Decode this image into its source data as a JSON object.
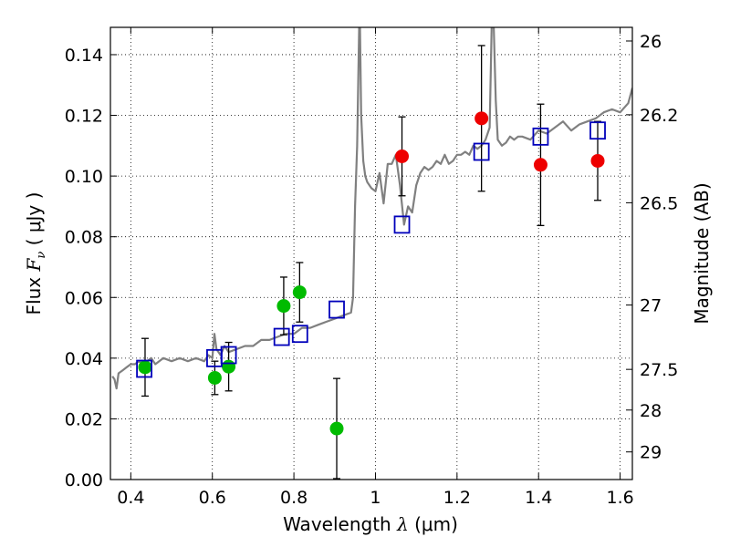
{
  "chart_data": {
    "type": "scatter",
    "xlabel": "Wavelength  λ (μm)",
    "ylabel": "Flux  F_ν  ( μJy )",
    "ylabel_parts": {
      "prefix": "Flux  ",
      "symbol": "F",
      "subscript": "ν",
      "unit": "  ( μJy )"
    },
    "xlabel_parts": {
      "prefix": "Wavelength  ",
      "symbol": "λ",
      "unit": " (μm)"
    },
    "right_ylabel": "Magnitude (AB)",
    "xlim": [
      0.35,
      1.63
    ],
    "ylim": [
      0.0,
      0.149
    ],
    "grid": true,
    "x_ticks": [
      0.4,
      0.6,
      0.8,
      1.0,
      1.2,
      1.4,
      1.6
    ],
    "x_tick_labels": [
      "0.4",
      "0.6",
      "0.8",
      "1",
      "1.2",
      "1.4",
      "1.6"
    ],
    "y_ticks": [
      0.0,
      0.02,
      0.04,
      0.06,
      0.08,
      0.1,
      0.12,
      0.14
    ],
    "y_tick_labels": [
      "0.00",
      "0.02",
      "0.04",
      "0.06",
      "0.08",
      "0.10",
      "0.12",
      "0.14"
    ],
    "right_ticks": [
      {
        "label": "26",
        "flux": 0.1445
      },
      {
        "label": "26.2",
        "flux": 0.1202
      },
      {
        "label": "26.5",
        "flux": 0.0912
      },
      {
        "label": "27",
        "flux": 0.0575
      },
      {
        "label": "27.5",
        "flux": 0.0363
      },
      {
        "label": "28",
        "flux": 0.0229
      },
      {
        "label": "29",
        "flux": 0.0091
      }
    ],
    "colors": {
      "sed": "#808080",
      "green": "#00bb00",
      "red": "#ee0000",
      "model": "#0000bb",
      "errorbar": "#000000"
    },
    "series": [
      {
        "marker": "line",
        "x": [
          0.355,
          0.36,
          0.365,
          0.37,
          0.38,
          0.39,
          0.4,
          0.41,
          0.42,
          0.43,
          0.44,
          0.45,
          0.46,
          0.48,
          0.5,
          0.52,
          0.54,
          0.56,
          0.58,
          0.59,
          0.6,
          0.605,
          0.61,
          0.62,
          0.63,
          0.64,
          0.66,
          0.68,
          0.7,
          0.72,
          0.74,
          0.76,
          0.78,
          0.8,
          0.82,
          0.84,
          0.86,
          0.88,
          0.9,
          0.92,
          0.94,
          0.945,
          0.95,
          0.955,
          0.96,
          0.962,
          0.965,
          0.97,
          0.975,
          0.98,
          0.99,
          1.0,
          1.01,
          1.02,
          1.03,
          1.04,
          1.05,
          1.06,
          1.07,
          1.08,
          1.09,
          1.1,
          1.11,
          1.12,
          1.13,
          1.14,
          1.15,
          1.16,
          1.17,
          1.18,
          1.19,
          1.2,
          1.21,
          1.22,
          1.23,
          1.24,
          1.25,
          1.26,
          1.27,
          1.28,
          1.285,
          1.29,
          1.295,
          1.3,
          1.31,
          1.32,
          1.33,
          1.34,
          1.35,
          1.36,
          1.38,
          1.4,
          1.42,
          1.44,
          1.46,
          1.48,
          1.5,
          1.52,
          1.54,
          1.56,
          1.58,
          1.6,
          1.62,
          1.63
        ],
        "y": [
          0.034,
          0.033,
          0.03,
          0.035,
          0.036,
          0.037,
          0.038,
          0.038,
          0.039,
          0.038,
          0.039,
          0.04,
          0.038,
          0.04,
          0.039,
          0.04,
          0.039,
          0.04,
          0.039,
          0.041,
          0.04,
          0.048,
          0.043,
          0.041,
          0.044,
          0.042,
          0.043,
          0.044,
          0.044,
          0.046,
          0.046,
          0.047,
          0.048,
          0.048,
          0.05,
          0.05,
          0.051,
          0.052,
          0.053,
          0.054,
          0.055,
          0.06,
          0.09,
          0.11,
          0.149,
          0.149,
          0.12,
          0.105,
          0.1,
          0.098,
          0.096,
          0.095,
          0.101,
          0.091,
          0.104,
          0.104,
          0.107,
          0.097,
          0.084,
          0.09,
          0.088,
          0.097,
          0.101,
          0.103,
          0.102,
          0.103,
          0.105,
          0.104,
          0.107,
          0.104,
          0.105,
          0.107,
          0.107,
          0.108,
          0.107,
          0.11,
          0.109,
          0.11,
          0.112,
          0.116,
          0.149,
          0.149,
          0.125,
          0.112,
          0.11,
          0.111,
          0.113,
          0.112,
          0.113,
          0.113,
          0.112,
          0.115,
          0.114,
          0.116,
          0.118,
          0.115,
          0.117,
          0.118,
          0.119,
          0.121,
          0.122,
          0.121,
          0.124,
          0.129
        ]
      },
      {
        "marker": "circle",
        "color": "green",
        "points": [
          {
            "x": 0.435,
            "y": 0.037,
            "err": 0.0095
          },
          {
            "x": 0.606,
            "y": 0.0335,
            "err": 0.0055
          },
          {
            "x": 0.64,
            "y": 0.0372,
            "err": 0.008
          },
          {
            "x": 0.775,
            "y": 0.0572,
            "err": 0.0095
          },
          {
            "x": 0.814,
            "y": 0.0617,
            "err": 0.0098
          },
          {
            "x": 0.905,
            "y": 0.0168,
            "err": 0.0165
          }
        ]
      },
      {
        "marker": "circle",
        "color": "red",
        "points": [
          {
            "x": 1.065,
            "y": 0.1065,
            "err": 0.013
          },
          {
            "x": 1.26,
            "y": 0.119,
            "err": 0.024
          },
          {
            "x": 1.405,
            "y": 0.1037,
            "err": 0.02
          },
          {
            "x": 1.545,
            "y": 0.105,
            "err": 0.013
          }
        ]
      },
      {
        "marker": "square",
        "color": "model",
        "points": [
          {
            "x": 0.433,
            "y": 0.0365
          },
          {
            "x": 0.605,
            "y": 0.04
          },
          {
            "x": 0.64,
            "y": 0.041
          },
          {
            "x": 0.77,
            "y": 0.047
          },
          {
            "x": 0.815,
            "y": 0.048
          },
          {
            "x": 0.905,
            "y": 0.056
          },
          {
            "x": 1.065,
            "y": 0.084
          },
          {
            "x": 1.26,
            "y": 0.108
          },
          {
            "x": 1.405,
            "y": 0.113
          },
          {
            "x": 1.545,
            "y": 0.115
          }
        ]
      }
    ]
  }
}
